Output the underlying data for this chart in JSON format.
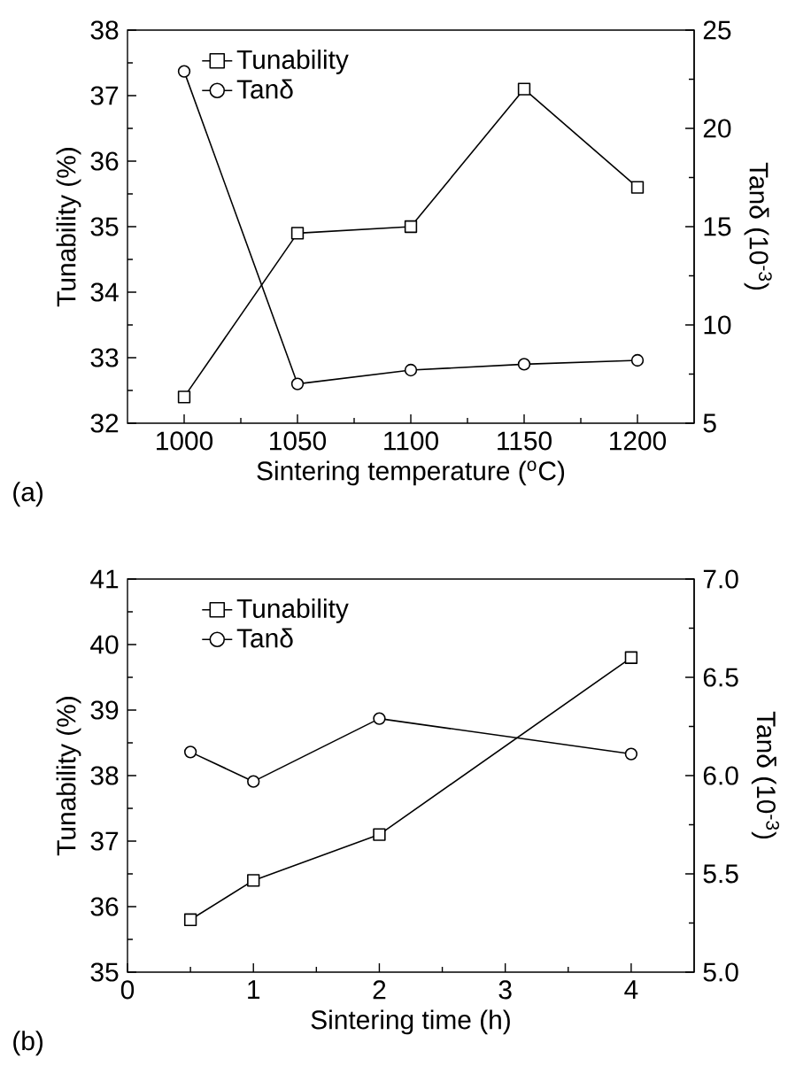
{
  "chart_data": [
    {
      "type": "line",
      "xlabel": "Sintering temperature ($^{o}$C)",
      "ylabel": "Tunability (%)",
      "y2label": "Tanδ (10$^{-3}$)",
      "x": [
        1000,
        1050,
        1100,
        1150,
        1200
      ],
      "series": [
        {
          "name": "Tunability",
          "color": "#000000",
          "marker": "square",
          "values": [
            32.4,
            34.9,
            35.0,
            37.1,
            35.6
          ]
        },
        {
          "name": "Tanδ",
          "color": "#000000",
          "marker": "circle",
          "axis": "y2",
          "values": [
            22.9,
            7.0,
            7.7,
            8.0,
            8.2
          ]
        }
      ],
      "xlim": [
        975,
        1225
      ],
      "xticks": [
        1000,
        1050,
        1100,
        1150,
        1200
      ],
      "ylim": [
        32,
        38
      ],
      "yticks": [
        32,
        33,
        34,
        35,
        36,
        37,
        38
      ],
      "y2lim": [
        5,
        25
      ],
      "y2ticks": [
        5,
        10,
        15,
        20,
        25
      ],
      "legend": "top left",
      "annotations": [
        "(a)"
      ]
    },
    {
      "type": "line",
      "xlabel": "Sintering time (h)",
      "ylabel": "Tunability (%)",
      "y2label": "Tanδ (10$^{-3}$)",
      "x": [
        0.5,
        1,
        2,
        4
      ],
      "series": [
        {
          "name": "Tunability",
          "color": "#000000",
          "marker": "square",
          "values": [
            35.8,
            36.4,
            37.1,
            39.8
          ]
        },
        {
          "name": "Tanδ",
          "color": "#000000",
          "marker": "circle",
          "axis": "y2",
          "values": [
            6.12,
            5.97,
            6.29,
            6.11
          ]
        }
      ],
      "xlim": [
        0,
        4.5
      ],
      "xticks": [
        0,
        1,
        2,
        3,
        4
      ],
      "ylim": [
        35,
        41
      ],
      "yticks": [
        35,
        36,
        37,
        38,
        39,
        40,
        41
      ],
      "y2lim": [
        5.0,
        7.0
      ],
      "y2ticks": [
        {
          "value": 5.0,
          "label": "5.0"
        },
        {
          "value": 5.5,
          "label": "5.5"
        },
        {
          "value": 6.0,
          "label": "6.0"
        },
        {
          "value": 6.5,
          "label": "6.5"
        },
        {
          "value": 7.0,
          "label": "7.0"
        }
      ],
      "legend": "top left",
      "annotations": [
        "(b)"
      ]
    }
  ]
}
